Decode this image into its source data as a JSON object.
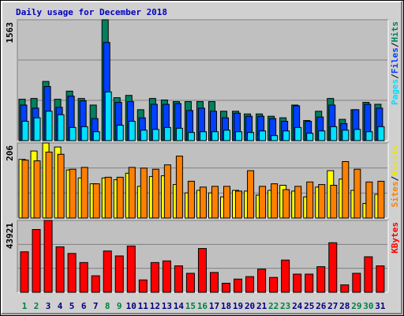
{
  "title": "Daily usage for December 2018",
  "chart_data": [
    {
      "type": "bar",
      "ylim": [
        0,
        1563
      ],
      "yticks": [
        1563
      ],
      "legend_separator": "/",
      "series": [
        {
          "name": "Pages",
          "color": "#00e0ff",
          "values": [
            250,
            295,
            380,
            335,
            170,
            180,
            115,
            630,
            200,
            250,
            135,
            145,
            170,
            160,
            105,
            115,
            115,
            135,
            115,
            105,
            125,
            65,
            125,
            170,
            95,
            125,
            180,
            135,
            145,
            115,
            180
          ]
        },
        {
          "name": "Files",
          "color": "#0040ff",
          "values": [
            460,
            420,
            700,
            430,
            575,
            515,
            285,
            1270,
            495,
            505,
            295,
            470,
            470,
            480,
            390,
            420,
            380,
            295,
            355,
            315,
            315,
            285,
            250,
            450,
            250,
            305,
            460,
            220,
            400,
            470,
            420
          ]
        },
        {
          "name": "Hits",
          "color": "#008060",
          "values": [
            535,
            545,
            765,
            535,
            640,
            545,
            460,
            1563,
            555,
            585,
            400,
            545,
            525,
            505,
            505,
            505,
            505,
            380,
            380,
            345,
            345,
            315,
            295,
            460,
            260,
            380,
            545,
            275,
            400,
            495,
            470
          ]
        }
      ]
    },
    {
      "type": "bar",
      "ylim": [
        0,
        206
      ],
      "yticks": [
        206
      ],
      "legend_separator": "/",
      "series": [
        {
          "name": "Sites",
          "color": "#ff8000",
          "values": [
            159,
            157,
            181,
            175,
            134,
            139,
            94,
            112,
            112,
            139,
            137,
            134,
            146,
            170,
            101,
            85,
            87,
            87,
            74,
            130,
            87,
            94,
            78,
            87,
            99,
            92,
            90,
            155,
            134,
            99,
            101
          ]
        },
        {
          "name": "Visits",
          "color": "#ffff00",
          "values": [
            161,
            184,
            206,
            195,
            132,
            110,
            94,
            110,
            105,
            123,
            87,
            114,
            116,
            92,
            69,
            76,
            69,
            58,
            76,
            74,
            63,
            76,
            90,
            74,
            58,
            85,
            130,
            107,
            76,
            40,
            65
          ]
        }
      ]
    },
    {
      "type": "bar",
      "ylim": [
        0,
        43921
      ],
      "yticks": [
        43921
      ],
      "categories": [
        "1",
        "2",
        "3",
        "4",
        "5",
        "6",
        "7",
        "8",
        "9",
        "10",
        "11",
        "12",
        "13",
        "14",
        "15",
        "16",
        "17",
        "18",
        "19",
        "20",
        "21",
        "22",
        "23",
        "24",
        "25",
        "26",
        "27",
        "28",
        "29",
        "30",
        "31"
      ],
      "category_colors": [
        "#008040",
        "#008040",
        "#000080",
        "#000080",
        "#000080",
        "#000080",
        "#000080",
        "#008040",
        "#008040",
        "#000080",
        "#000080",
        "#000080",
        "#000080",
        "#000080",
        "#008040",
        "#008040",
        "#000080",
        "#000080",
        "#000080",
        "#000080",
        "#000080",
        "#008040",
        "#008040",
        "#000080",
        "#000080",
        "#000080",
        "#000080",
        "#000080",
        "#008040",
        "#008040",
        "#000080"
      ],
      "series": [
        {
          "name": "KBytes",
          "color": "#ff0000",
          "values": [
            24740,
            38370,
            43921,
            27770,
            23730,
            18180,
            10100,
            25250,
            22220,
            28280,
            7570,
            18180,
            19190,
            16160,
            11610,
            26760,
            12120,
            5550,
            8080,
            9590,
            14140,
            9090,
            19690,
            11110,
            11110,
            15650,
            30290,
            4540,
            11610,
            21710,
            16160
          ]
        }
      ]
    }
  ]
}
